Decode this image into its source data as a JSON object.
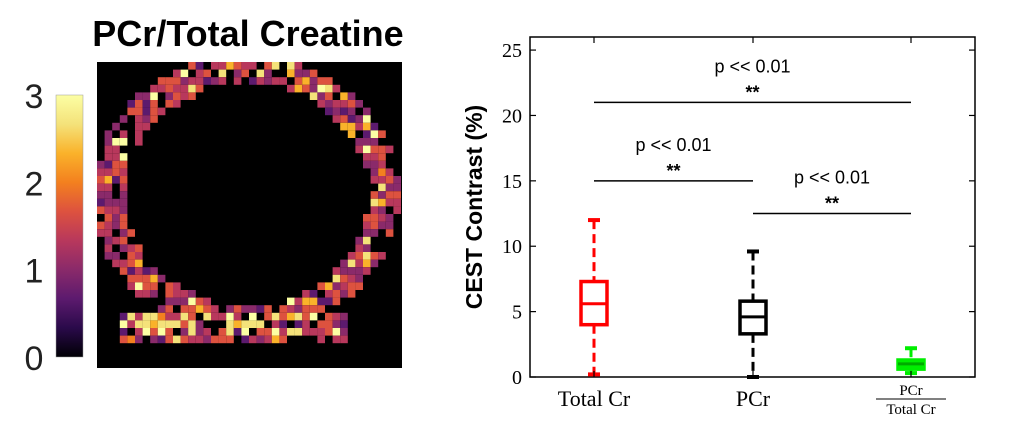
{
  "map_panel": {
    "title": "PCr/Total Creatine",
    "colorbar": {
      "ticks": [
        "0",
        "1",
        "2",
        "3"
      ],
      "range": [
        0,
        3
      ],
      "colormap": [
        "#000004",
        "#2a0a4a",
        "#5c1a6e",
        "#8a2a6a",
        "#b8385c",
        "#dd523f",
        "#f3801f",
        "#fab22a",
        "#f4e27a",
        "#fcffa4"
      ]
    }
  },
  "chart_data": {
    "type": "box",
    "ylabel": "CEST Contrast (%)",
    "ylim": [
      0,
      26
    ],
    "yticks": [
      "0",
      "5",
      "10",
      "15",
      "20",
      "25"
    ],
    "grid": false,
    "categories": [
      {
        "label": "Total Cr",
        "color": "#ff0000",
        "min": 0.2,
        "q1": 4.0,
        "median": 5.6,
        "q3": 7.3,
        "max": 12.0
      },
      {
        "label": "PCr",
        "color": "#000000",
        "min": 0.0,
        "q1": 3.3,
        "median": 4.6,
        "q3": 5.8,
        "max": 9.6
      },
      {
        "label_num": "PCr",
        "label_den": "Total Cr",
        "color": "#00ee00",
        "min": 0.3,
        "q1": 0.6,
        "median": 1.0,
        "q3": 1.3,
        "max": 2.2
      }
    ],
    "significance": [
      {
        "from": 0,
        "to": 2,
        "y": 21,
        "pvalue": "p << 0.01",
        "stars": "**"
      },
      {
        "from": 0,
        "to": 1,
        "y": 15,
        "pvalue": "p << 0.01",
        "stars": "**"
      },
      {
        "from": 1,
        "to": 2,
        "y": 12.5,
        "pvalue": "p << 0.01",
        "stars": "**"
      }
    ]
  }
}
